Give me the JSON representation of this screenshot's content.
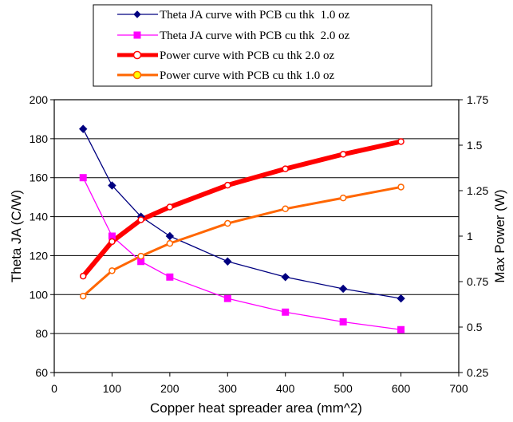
{
  "chart_data": {
    "type": "line",
    "x": [
      50,
      100,
      150,
      200,
      300,
      400,
      500,
      600
    ],
    "xlabel": "Copper heat spreader area (mm^2)",
    "ylabel": "Theta JA (C/W)",
    "y2label": "Max Power (W)",
    "xlim": [
      0,
      700
    ],
    "ylim": [
      60,
      200
    ],
    "y2lim": [
      0.25,
      1.75
    ],
    "x_ticks": [
      "0",
      "100",
      "200",
      "300",
      "400",
      "500",
      "600",
      "700"
    ],
    "y_ticks": [
      "60",
      "80",
      "100",
      "120",
      "140",
      "160",
      "180",
      "200"
    ],
    "y2_ticks": [
      "0.25",
      "0.5",
      "0.75",
      "1",
      "1.25",
      "1.5",
      "1.75"
    ],
    "grid": "horizontal",
    "legend_position": "top",
    "series": [
      {
        "name": "Theta JA curve with PCB cu thk  1.0 oz",
        "axis": "left",
        "color": "#000080",
        "marker": "diamond",
        "values": [
          185,
          156,
          140,
          130,
          117,
          109,
          103,
          98
        ]
      },
      {
        "name": "Theta JA curve with PCB cu thk  2.0 oz",
        "axis": "left",
        "color": "#ff00ff",
        "marker": "square",
        "values": [
          160,
          130,
          117,
          109,
          98,
          91,
          86,
          82
        ]
      },
      {
        "name": "Power curve with PCB cu thk 2.0 oz",
        "axis": "right",
        "color": "#ff0000",
        "marker": "circle",
        "values": [
          0.78,
          0.97,
          1.09,
          1.16,
          1.28,
          1.37,
          1.45,
          1.52
        ]
      },
      {
        "name": "Power curve with PCB cu thk 1.0 oz",
        "axis": "right",
        "color": "#ff6600",
        "marker": "circle",
        "values": [
          0.67,
          0.81,
          0.89,
          0.96,
          1.07,
          1.15,
          1.21,
          1.27
        ]
      }
    ]
  }
}
